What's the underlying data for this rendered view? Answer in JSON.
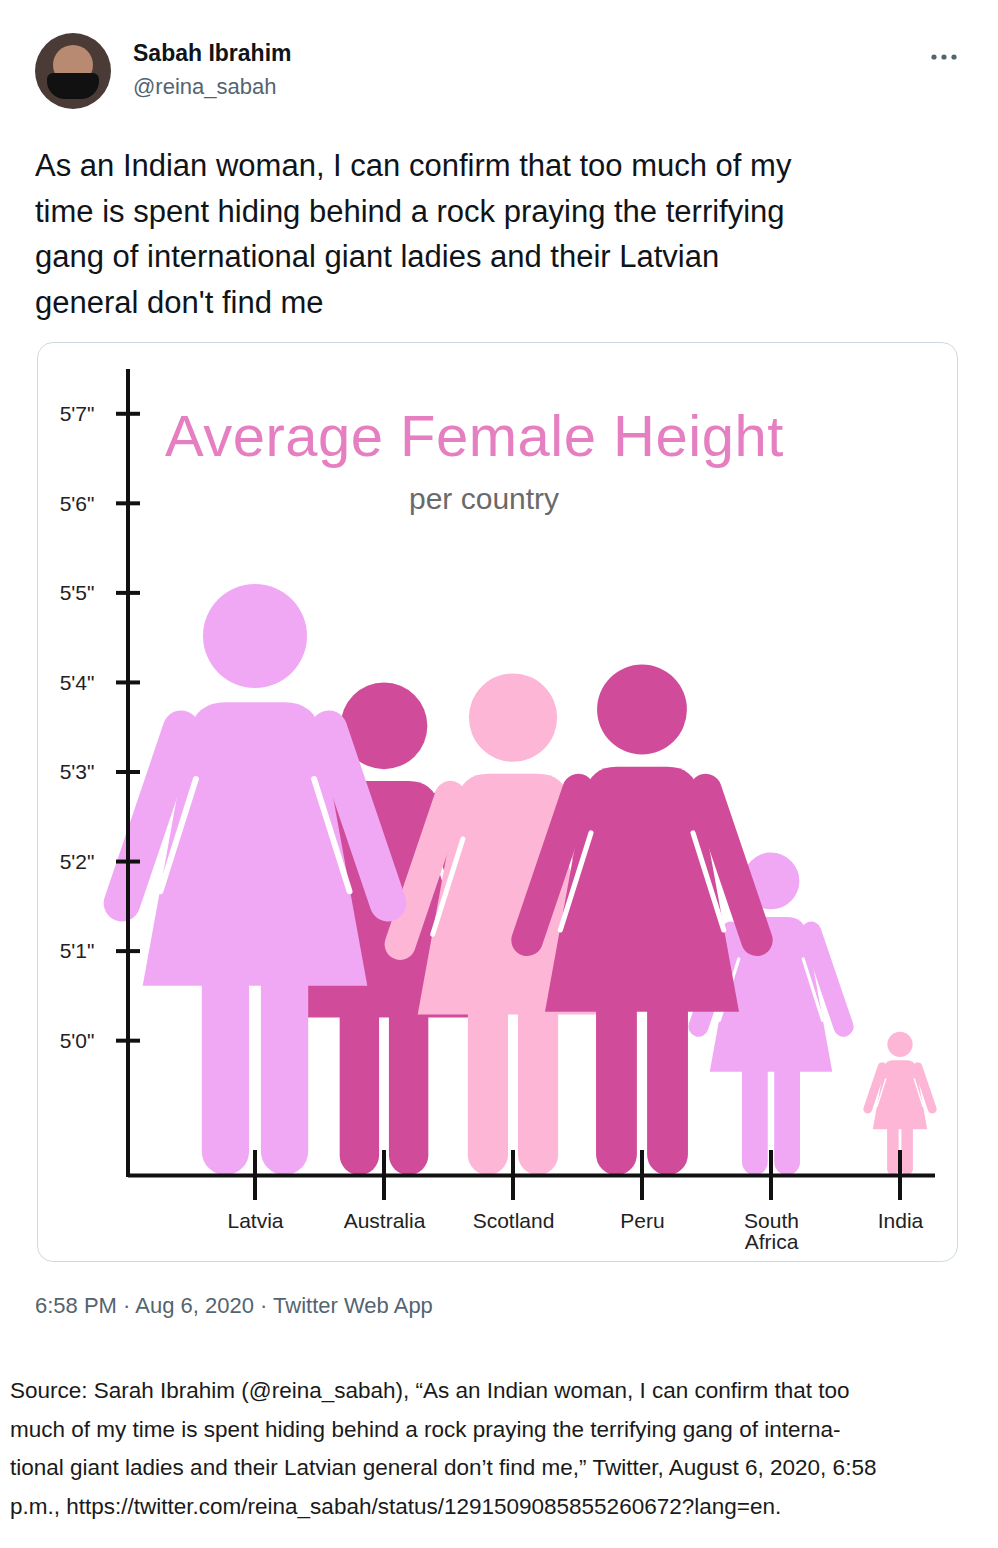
{
  "tweet": {
    "name": "Sabah Ibrahim",
    "handle": "@reina_sabah",
    "text_lines": [
      "As an Indian woman, I can confirm that too much of my",
      "time is spent hiding behind a rock praying the terrifying",
      "gang of international giant ladies and their Latvian",
      "general don't find me"
    ],
    "footer": "6:58 PM · Aug 6, 2020 · Twitter Web App"
  },
  "chart_data": {
    "type": "pictogram",
    "title": "Average Female Height",
    "subtitle": "per country",
    "categories": [
      "Latvia",
      "Australia",
      "Scotland",
      "Peru",
      "South Africa",
      "India"
    ],
    "values": [
      65.1,
      64.0,
      64.1,
      64.2,
      62.1,
      60.1
    ],
    "colors": [
      "#f0a8f5",
      "#d04c9a",
      "#fdb6d6",
      "#d04c9a",
      "#f0a8f5",
      "#fdb6d6"
    ],
    "ylim": [
      58.5,
      67.5
    ],
    "yticks": [
      {
        "value": 60,
        "label": "5'0\""
      },
      {
        "value": 61,
        "label": "5'1\""
      },
      {
        "value": 62,
        "label": "5'2\""
      },
      {
        "value": 63,
        "label": "5'3\""
      },
      {
        "value": 64,
        "label": "5'4\""
      },
      {
        "value": 65,
        "label": "5'5\""
      },
      {
        "value": 66,
        "label": "5'6\""
      },
      {
        "value": 67,
        "label": "5'7\""
      }
    ],
    "grid": false
  },
  "caption_lines": [
    "Source: Sarah Ibrahim (@reina_sabah), “As an Indian woman, I can confirm that too",
    "much of my time is spent hiding behind a rock praying the terrifying gang of interna-",
    "tional giant ladies and their Latvian general don’t find me,” Twitter, August 6, 2020, 6:58",
    "p.m., https://twitter.com/reina_sabah/status/1291509085855260672?lang=en."
  ]
}
